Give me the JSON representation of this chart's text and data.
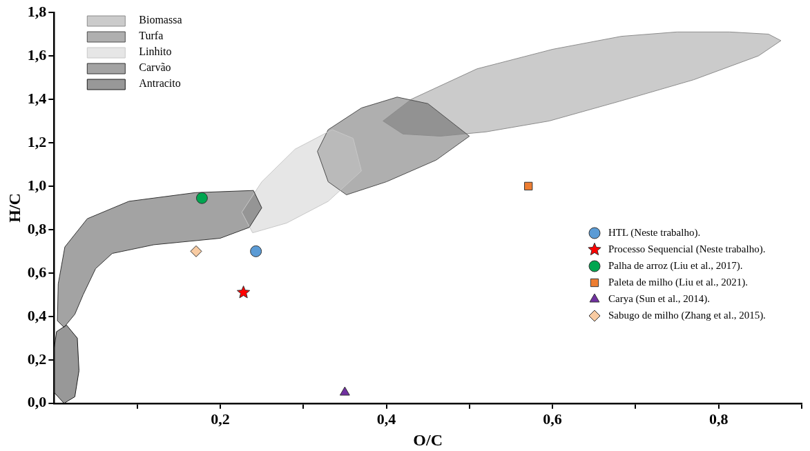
{
  "chart_data": {
    "type": "scatter",
    "xlabel": "O/C",
    "ylabel": "H/C",
    "xlim": [
      0,
      0.9
    ],
    "ylim": [
      0,
      1.8
    ],
    "xticks": [
      {
        "value": 0.1,
        "label": null
      },
      {
        "value": 0.2,
        "label": "0,2"
      },
      {
        "value": 0.3,
        "label": null
      },
      {
        "value": 0.4,
        "label": "0,4"
      },
      {
        "value": 0.5,
        "label": null
      },
      {
        "value": 0.6,
        "label": "0,6"
      },
      {
        "value": 0.7,
        "label": null
      },
      {
        "value": 0.8,
        "label": "0,8"
      },
      {
        "value": 0.9,
        "label": null
      }
    ],
    "yticks": [
      {
        "value": 0,
        "label": "0,0"
      },
      {
        "value": 0.2,
        "label": "0,2"
      },
      {
        "value": 0.4,
        "label": "0,4"
      },
      {
        "value": 0.6,
        "label": "0,6"
      },
      {
        "value": 0.8,
        "label": "0,8"
      },
      {
        "value": 1.0,
        "label": "1,0"
      },
      {
        "value": 1.2,
        "label": "1,2"
      },
      {
        "value": 1.4,
        "label": "1,4"
      },
      {
        "value": 1.6,
        "label": "1,6"
      },
      {
        "value": 1.8,
        "label": "1,8"
      }
    ],
    "grid": false,
    "legend": "right",
    "series": [
      {
        "name": "Biomassa",
        "type": "area",
        "color": "#8c8c8c",
        "x": [
          0.396,
          0.43,
          0.509,
          0.6,
          0.683,
          0.75,
          0.813,
          0.86,
          0.875,
          0.848,
          0.77,
          0.68,
          0.596,
          0.52,
          0.465,
          0.42,
          0.396
        ],
        "values": [
          1.3,
          1.4,
          1.54,
          1.63,
          1.69,
          1.71,
          1.71,
          1.7,
          1.67,
          1.6,
          1.49,
          1.39,
          1.3,
          1.25,
          1.23,
          1.24,
          1.3
        ]
      },
      {
        "name": "Turfa",
        "type": "area",
        "color": "#4d4d4d",
        "x": [
          0.317,
          0.33,
          0.37,
          0.413,
          0.45,
          0.5,
          0.46,
          0.4,
          0.352,
          0.33,
          0.317
        ],
        "values": [
          1.16,
          1.26,
          1.36,
          1.41,
          1.38,
          1.23,
          1.12,
          1.02,
          0.96,
          1.02,
          1.16
        ]
      },
      {
        "name": "Linhito",
        "type": "area",
        "color": "#c8c8c8",
        "x": [
          0.226,
          0.25,
          0.29,
          0.335,
          0.36,
          0.37,
          0.33,
          0.28,
          0.239,
          0.226
        ],
        "values": [
          0.88,
          1.02,
          1.17,
          1.26,
          1.22,
          1.07,
          0.93,
          0.83,
          0.785,
          0.88
        ]
      },
      {
        "name": "Carvão",
        "type": "area",
        "color": "#333333",
        "x": [
          0.004,
          0.005,
          0.013,
          0.04,
          0.09,
          0.17,
          0.24,
          0.25,
          0.235,
          0.2,
          0.12,
          0.07,
          0.05,
          0.035,
          0.025,
          0.012,
          0.004
        ],
        "values": [
          0.38,
          0.55,
          0.72,
          0.85,
          0.93,
          0.97,
          0.98,
          0.9,
          0.81,
          0.76,
          0.73,
          0.69,
          0.62,
          0.5,
          0.41,
          0.35,
          0.38
        ]
      },
      {
        "name": "Antracito",
        "type": "area",
        "color": "#1a1a1a",
        "x": [
          0,
          0.003,
          0.015,
          0.028,
          0.03,
          0.025,
          0.012,
          0,
          0
        ],
        "values": [
          0.25,
          0.33,
          0.36,
          0.3,
          0.15,
          0.03,
          0,
          0.05,
          0.25
        ]
      },
      {
        "name": "HTL (Neste trabalho).",
        "type": "scatter",
        "marker": "circle",
        "color": "#5b9bd5",
        "x": [
          0.243
        ],
        "values": [
          0.7
        ]
      },
      {
        "name": "Processo Sequencial (Neste trabalho).",
        "type": "scatter",
        "marker": "star",
        "color": "#ff0000",
        "x": [
          0.228
        ],
        "values": [
          0.51
        ]
      },
      {
        "name": "Palha de arroz (Liu et al., 2017).",
        "type": "scatter",
        "marker": "circle",
        "color": "#00a550",
        "x": [
          0.178
        ],
        "values": [
          0.945
        ]
      },
      {
        "name": "Paleta de milho (Liu et al., 2021).",
        "type": "scatter",
        "marker": "square",
        "color": "#ed7d31",
        "x": [
          0.571
        ],
        "values": [
          1.0
        ]
      },
      {
        "name": "Carya (Sun et al., 2014).",
        "type": "scatter",
        "marker": "triangle",
        "color": "#7030a0",
        "x": [
          0.35
        ],
        "values": [
          0.05
        ]
      },
      {
        "name": "Sabugo de milho (Zhang et al., 2015).",
        "type": "scatter",
        "marker": "diamond",
        "color": "#f8cba2",
        "x": [
          0.171
        ],
        "values": [
          0.7
        ]
      }
    ]
  }
}
